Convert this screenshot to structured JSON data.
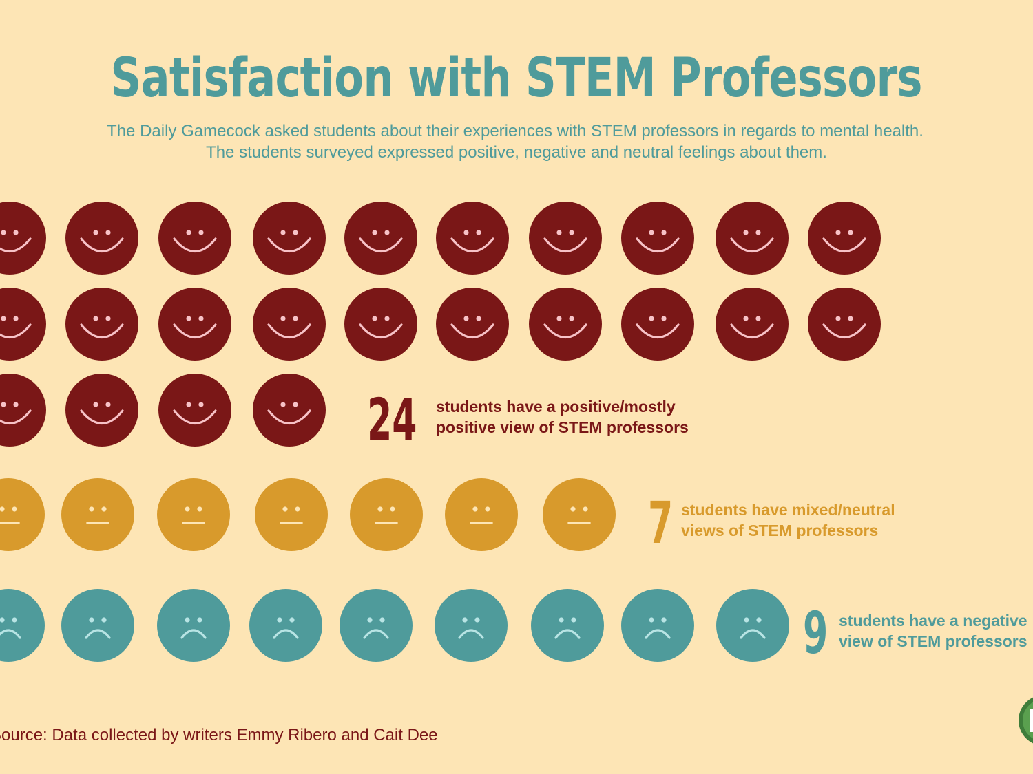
{
  "title": "Satisfaction with STEM Professors",
  "subtitle_line1": "The Daily Gamecock asked students about their experiences with STEM professors in regards to mental health.",
  "subtitle_line2": "The students surveyed expressed positive, negative and neutral feelings about them.",
  "source": "Source: Data collected by writers Emmy Ribero and Cait Dee",
  "colors": {
    "background": "#fde5b5",
    "positive": "#7a1717",
    "neutral": "#d89a2c",
    "negative": "#4f9b9b",
    "positive_feature": "#f7c2c7",
    "neutral_feature": "#fde5b5",
    "negative_feature": "#b8e4e4"
  },
  "chart_data": {
    "type": "pictograph",
    "title": "Satisfaction with STEM Professors",
    "categories": [
      "positive/mostly positive",
      "mixed/neutral",
      "negative"
    ],
    "values": [
      24,
      7,
      9
    ],
    "groups": [
      {
        "key": "positive",
        "count": 24,
        "count_label": "24",
        "line1": "students have a positive/mostly",
        "line2": "positive view of STEM professors",
        "icon": "smiley-face-icon"
      },
      {
        "key": "neutral",
        "count": 7,
        "count_label": "7",
        "line1": "students have mixed/neutral",
        "line2": "views of STEM professors",
        "icon": "neutral-face-icon"
      },
      {
        "key": "negative",
        "count": 9,
        "count_label": "9",
        "line1": "students have a negative",
        "line2": "view of STEM professors",
        "icon": "sad-face-icon"
      }
    ]
  }
}
